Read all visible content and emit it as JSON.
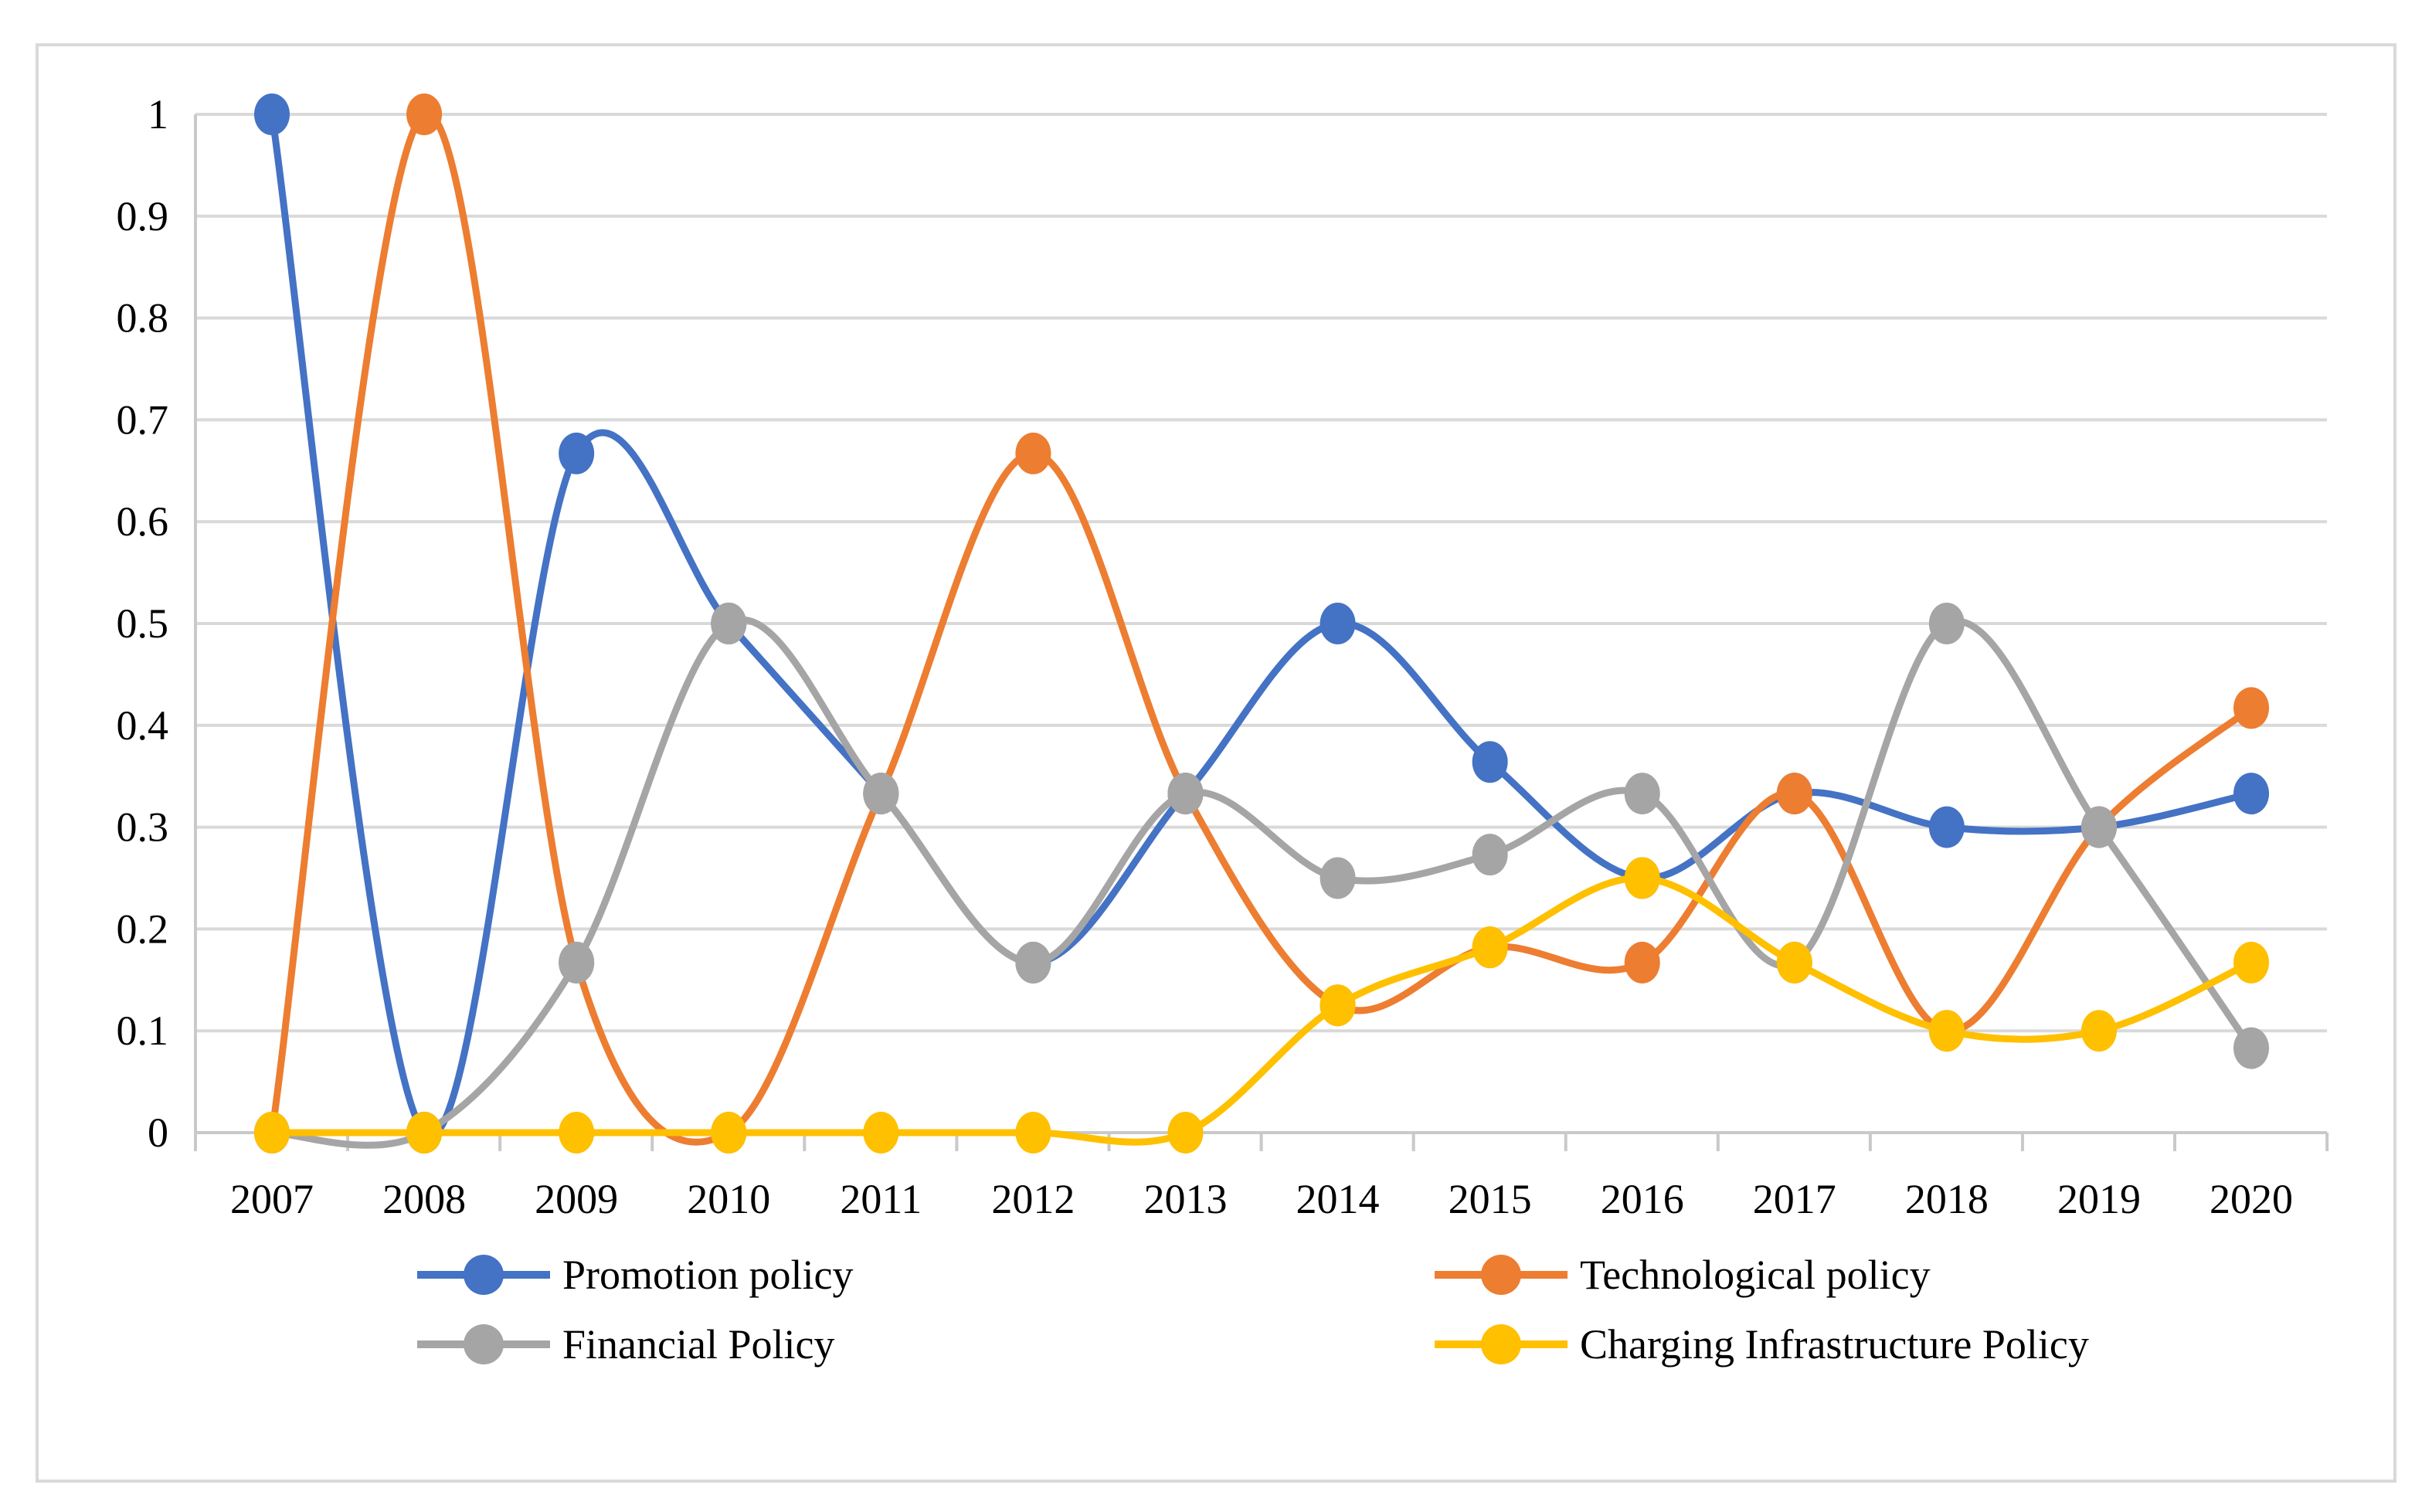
{
  "chart_data": {
    "type": "line",
    "title": "",
    "xlabel": "",
    "ylabel": "",
    "x": [
      "2007",
      "2008",
      "2009",
      "2010",
      "2011",
      "2012",
      "2013",
      "2014",
      "2015",
      "2016",
      "2017",
      "2018",
      "2019",
      "2020"
    ],
    "series": [
      {
        "name": "Promotion policy",
        "color": "#4472C4",
        "values": [
          1,
          0,
          0.667,
          0.5,
          0.333,
          0.167,
          0.333,
          0.5,
          0.364,
          0.25,
          0.333,
          0.3,
          0.3,
          0.333
        ]
      },
      {
        "name": "Technological policy",
        "color": "#ED7D31",
        "values": [
          0,
          1,
          0.167,
          0,
          0.333,
          0.667,
          0.333,
          0.125,
          0.182,
          0.167,
          0.333,
          0.1,
          0.3,
          0.417
        ]
      },
      {
        "name": "Financial Policy",
        "color": "#A5A5A5",
        "values": [
          0,
          0,
          0.167,
          0.5,
          0.333,
          0.167,
          0.333,
          0.25,
          0.273,
          0.333,
          0.167,
          0.5,
          0.3,
          0.083
        ]
      },
      {
        "name": "Charging Infrastructure Policy",
        "color": "#FFC000",
        "values": [
          0,
          0,
          0,
          0,
          0,
          0,
          0,
          0.125,
          0.182,
          0.25,
          0.167,
          0.1,
          0.1,
          0.167
        ]
      }
    ],
    "ylim": [
      0,
      1
    ],
    "y_ticks": [
      "0",
      "0.1",
      "0.2",
      "0.3",
      "0.4",
      "0.5",
      "0.6",
      "0.7",
      "0.8",
      "0.9",
      "1"
    ],
    "grid": true,
    "smooth_lines": true,
    "legend_position": "bottom",
    "legend_rows": [
      [
        "Promotion policy",
        "Technological policy"
      ],
      [
        "Financial Policy",
        "Charging Infrastructure Policy"
      ]
    ]
  },
  "styles": {
    "background": "#ffffff",
    "gridline_color": "#D9D9D9",
    "axis_color": "#C9C9C9",
    "border_color": "#D9D9D9",
    "text_color": "#000000"
  }
}
